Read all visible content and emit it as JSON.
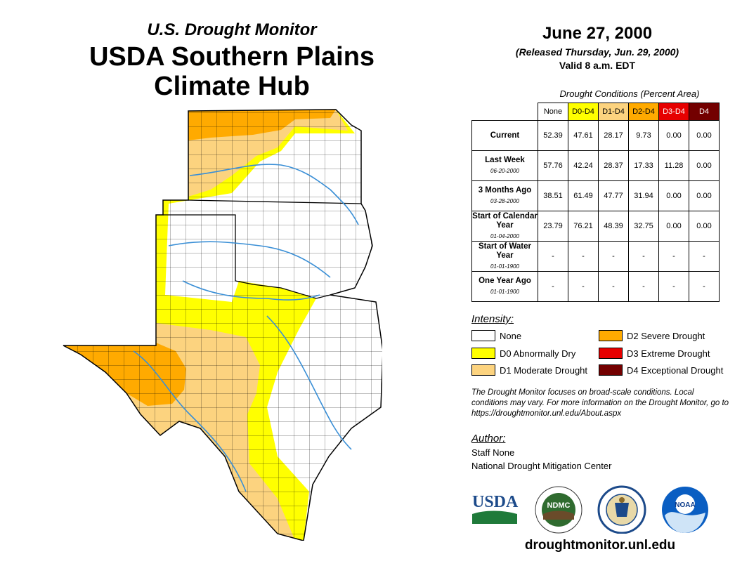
{
  "header": {
    "subtitle": "U.S. Drought Monitor",
    "title_line1": "USDA Southern Plains",
    "title_line2": "Climate Hub"
  },
  "map_info": {
    "date": "June 27, 2000",
    "released": "(Released Thursday, Jun. 29, 2000)",
    "valid": "Valid 8 a.m. EDT"
  },
  "table": {
    "caption": "Drought Conditions (Percent Area)",
    "columns": [
      {
        "label": "None",
        "color": "#ffffff",
        "text_color": "#000000"
      },
      {
        "label": "D0-D4",
        "color": "#ffff00",
        "text_color": "#000000"
      },
      {
        "label": "D1-D4",
        "color": "#fcd37f",
        "text_color": "#000000"
      },
      {
        "label": "D2-D4",
        "color": "#ffaa00",
        "text_color": "#000000"
      },
      {
        "label": "D3-D4",
        "color": "#e60000",
        "text_color": "#ffffff"
      },
      {
        "label": "D4",
        "color": "#730000",
        "text_color": "#ffffff"
      }
    ],
    "rows": [
      {
        "label": "Current",
        "date": "",
        "values": [
          "52.39",
          "47.61",
          "28.17",
          "9.73",
          "0.00",
          "0.00"
        ]
      },
      {
        "label": "Last Week",
        "date": "06-20-2000",
        "values": [
          "57.76",
          "42.24",
          "28.37",
          "17.33",
          "11.28",
          "0.00"
        ]
      },
      {
        "label": "3 Months Ago",
        "date": "03-28-2000",
        "values": [
          "38.51",
          "61.49",
          "47.77",
          "31.94",
          "0.00",
          "0.00"
        ]
      },
      {
        "label": "Start of Calendar Year",
        "date": "01-04-2000",
        "values": [
          "23.79",
          "76.21",
          "48.39",
          "32.75",
          "0.00",
          "0.00"
        ]
      },
      {
        "label": "Start of Water Year",
        "date": "01-01-1900",
        "values": [
          "-",
          "-",
          "-",
          "-",
          "-",
          "-"
        ]
      },
      {
        "label": "One Year Ago",
        "date": "01-01-1900",
        "values": [
          "-",
          "-",
          "-",
          "-",
          "-",
          "-"
        ]
      }
    ]
  },
  "legend": {
    "title": "Intensity:",
    "items": [
      {
        "label": "None",
        "color": "#ffffff"
      },
      {
        "label": "D0 Abnormally Dry",
        "color": "#ffff00"
      },
      {
        "label": "D1 Moderate Drought",
        "color": "#fcd37f"
      },
      {
        "label": "D2 Severe Drought",
        "color": "#ffaa00"
      },
      {
        "label": "D3 Extreme Drought",
        "color": "#e60000"
      },
      {
        "label": "D4 Exceptional Drought",
        "color": "#730000"
      }
    ]
  },
  "note": "The Drought Monitor focuses on broad-scale conditions. Local conditions may vary. For more information on the Drought Monitor, go to https://droughtmonitor.unl.edu/About.aspx",
  "author": {
    "label": "Author:",
    "name": "Staff None",
    "org": "National Drought Mitigation Center"
  },
  "logos": {
    "usda_text": "USDA",
    "ndmc_text": "NDMC",
    "noaa_text": "NOAA"
  },
  "website": "droughtmonitor.unl.edu",
  "colors": {
    "none": "#ffffff",
    "d0": "#ffff00",
    "d1": "#fcd37f",
    "d2": "#ffaa00",
    "d3": "#e60000",
    "d4": "#730000",
    "river": "#3a8fd6"
  }
}
